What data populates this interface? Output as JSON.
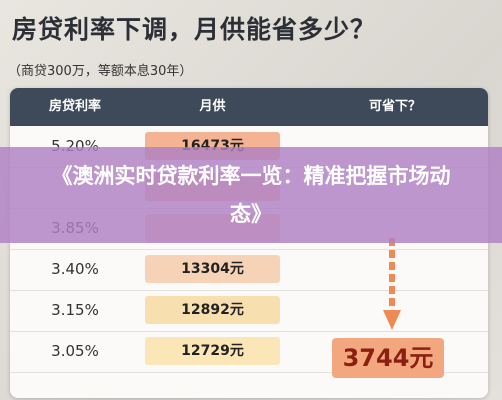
{
  "header": {
    "title": "房贷利率下调，月供能省多少？",
    "subtitle": "（商贷300万，等额本息30年）"
  },
  "table": {
    "columns": [
      "房贷利率",
      "月供",
      "可省下？"
    ],
    "rows": [
      {
        "rate": "5.20%",
        "payment": "16473元"
      },
      {},
      {
        "rate": "3.85%"
      },
      {
        "rate": "3.40%",
        "payment": "13304元"
      },
      {
        "rate": "3.15%",
        "payment": "12892元"
      },
      {
        "rate": "3.05%",
        "payment": "12729元"
      }
    ],
    "saving": "3744元"
  },
  "banner": {
    "text": "《澳洲实时贷款利率一览：精准把握市场动态》"
  }
}
